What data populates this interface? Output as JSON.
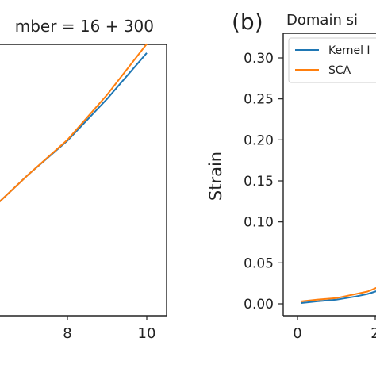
{
  "chart_data": [
    {
      "type": "line",
      "title": "mber = 16 + 300",
      "panel_label": "",
      "xlim": [
        5.75,
        10.25
      ],
      "ylim": [
        0,
        0.32
      ],
      "x_ticks": [
        8,
        10
      ],
      "x_tick_labels": [
        "8",
        "10"
      ],
      "series": [
        {
          "name": "Kernel",
          "color": "#1f77b4",
          "x": [
            5.75,
            7,
            8,
            9,
            10
          ],
          "y": [
            0.1,
            0.157,
            0.199,
            0.25,
            0.306
          ]
        },
        {
          "name": "SCA",
          "color": "#ff7f0e",
          "x": [
            5.75,
            7,
            8,
            9,
            10
          ],
          "y": [
            0.1,
            0.157,
            0.2,
            0.255,
            0.317
          ]
        }
      ]
    },
    {
      "type": "line",
      "panel_label": "(b)",
      "title": "Domain si",
      "ylabel": "Strain",
      "xlim": [
        -0.2,
        3.5
      ],
      "ylim": [
        -0.012,
        0.335
      ],
      "y_ticks": [
        0.0,
        0.05,
        0.1,
        0.15,
        0.2,
        0.25,
        0.3
      ],
      "y_tick_labels": [
        "0.00",
        "0.05",
        "0.10",
        "0.15",
        "0.20",
        "0.25",
        "0.30"
      ],
      "x_ticks": [
        0,
        2
      ],
      "x_tick_labels": [
        "0",
        "2"
      ],
      "legend": {
        "placement": "upper-left",
        "entries": [
          "Kernel I",
          "SCA"
        ]
      },
      "series": [
        {
          "name": "Kernel",
          "color": "#1f77b4",
          "x": [
            0.1,
            0.5,
            1.0,
            1.5,
            1.8,
            2.0,
            2.2
          ],
          "y": [
            0.001,
            0.003,
            0.005,
            0.009,
            0.012,
            0.015,
            0.019
          ]
        },
        {
          "name": "SCA",
          "color": "#ff7f0e",
          "x": [
            0.1,
            0.5,
            1.0,
            1.5,
            1.8,
            2.0,
            2.2
          ],
          "y": [
            0.003,
            0.005,
            0.007,
            0.012,
            0.015,
            0.019,
            0.023
          ]
        }
      ]
    }
  ]
}
